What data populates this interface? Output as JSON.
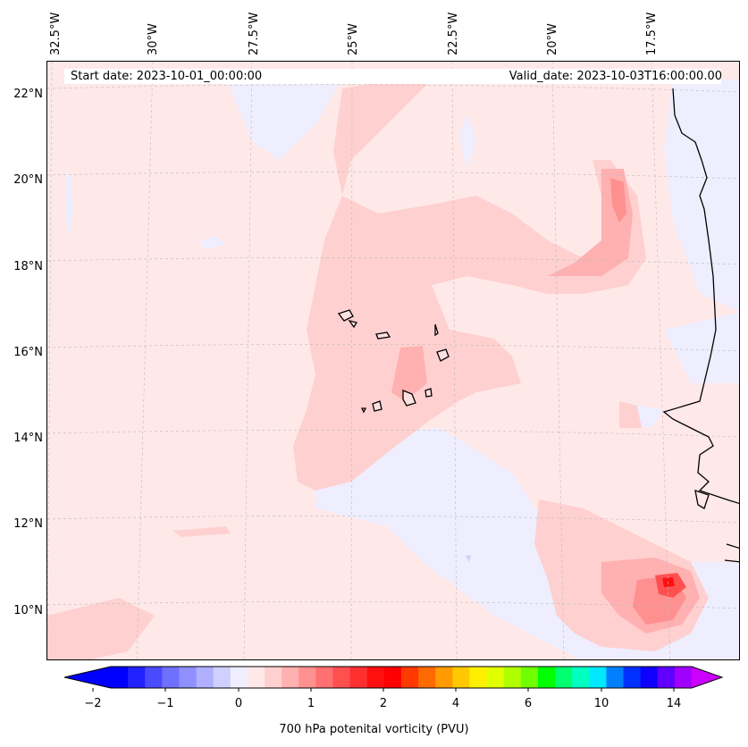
{
  "map": {
    "start_date": "Start date: 2023-10-01_00:00:00",
    "valid_date": "Valid_date: 2023-10-03T16:00:00.00",
    "lon_labels": [
      "32.5°W",
      "30°W",
      "27.5°W",
      "25°W",
      "22.5°W",
      "20°W",
      "17.5°W"
    ],
    "lat_labels": [
      "22°N",
      "20°N",
      "18°N",
      "16°N",
      "14°N",
      "12°N",
      "10°N"
    ],
    "background_color": "#ffe8e8",
    "coastline_color": "#000000",
    "gridline_style": "dashed"
  },
  "colorbar": {
    "label": "700 hPa potenital vorticity (PVU)",
    "tick_labels": [
      "−2",
      "−1",
      "0",
      "1",
      "2",
      "4",
      "6",
      "10",
      "14"
    ],
    "colors": [
      "#0000ff",
      "#2222ff",
      "#4a4aff",
      "#7070ff",
      "#8f8fff",
      "#b0b0ff",
      "#d0d0ff",
      "#eeeeff",
      "#ffe8e8",
      "#ffd0d0",
      "#ffb0b0",
      "#ff9090",
      "#ff7070",
      "#ff5050",
      "#ff3030",
      "#ff1010",
      "#ff0000",
      "#ff3a00",
      "#ff6a00",
      "#ff9a00",
      "#ffc800",
      "#fff000",
      "#e0ff00",
      "#b0ff00",
      "#70ff00",
      "#00ff00",
      "#00ff70",
      "#00ffc0",
      "#00e8ff",
      "#0080ff",
      "#0030ff",
      "#1000ff",
      "#6000ff",
      "#a000ff"
    ],
    "extend_min_color": "#0000ff",
    "extend_max_color": "#cc00ff"
  }
}
